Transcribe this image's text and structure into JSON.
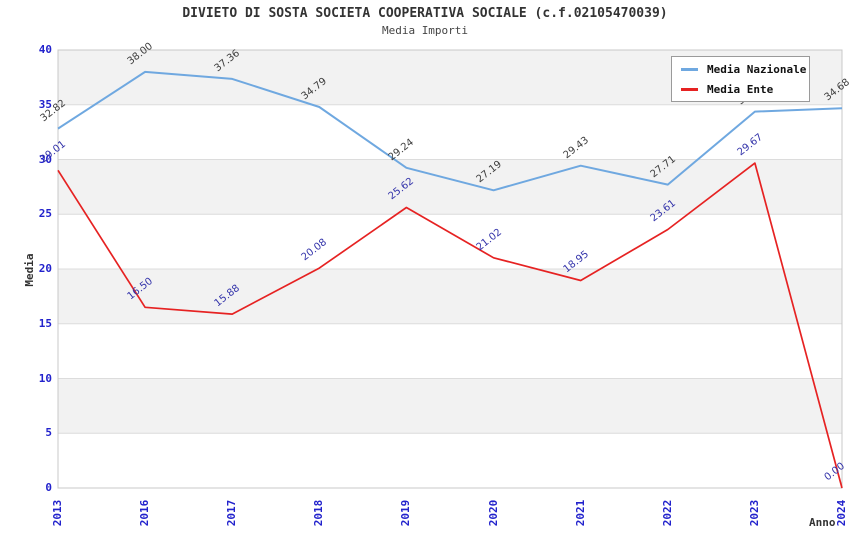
{
  "title": "DIVIETO DI SOSTA SOCIETA COOPERATIVA SOCIALE (c.f.02105470039)",
  "subtitle": "Media Importi",
  "axes": {
    "y_title": "Media",
    "x_title": "Anno",
    "y_ticks": [
      0,
      5,
      10,
      15,
      20,
      25,
      30,
      35,
      40
    ],
    "tick_color": "#2222cc"
  },
  "legend": {
    "items": [
      {
        "label": "Media Nazionale",
        "color": "#6fa8e0"
      },
      {
        "label": "Media Ente",
        "color": "#e62222"
      }
    ]
  },
  "colors": {
    "band_fill": "#f2f2f2",
    "grid_line": "#dcdcdc",
    "plot_border": "#c8c8c8"
  },
  "chart_data": {
    "type": "line",
    "title": "DIVIETO DI SOSTA SOCIETA COOPERATIVA SOCIALE (c.f.02105470039)",
    "subtitle": "Media Importi",
    "xlabel": "Anno",
    "ylabel": "Media",
    "ylim": [
      0,
      40
    ],
    "grid": "alternating horizontal bands every 5 units",
    "legend_position": "top-right inside plot",
    "categories": [
      "2013",
      "2016",
      "2017",
      "2018",
      "2019",
      "2020",
      "2021",
      "2022",
      "2023",
      "2024"
    ],
    "series": [
      {
        "name": "Media Nazionale",
        "color": "#6fa8e0",
        "label_color": "#3d3d3d",
        "values": [
          32.82,
          38.0,
          37.36,
          34.79,
          29.24,
          27.19,
          29.43,
          27.71,
          34.37,
          34.68
        ],
        "note": "2023 value label is hidden behind the legend box; 34.37 estimated from line position"
      },
      {
        "name": "Media Ente",
        "color": "#e62222",
        "label_color": "#3333aa",
        "values": [
          29.01,
          16.5,
          15.88,
          20.08,
          25.62,
          21.02,
          18.95,
          23.61,
          29.67,
          0.0
        ]
      }
    ]
  }
}
